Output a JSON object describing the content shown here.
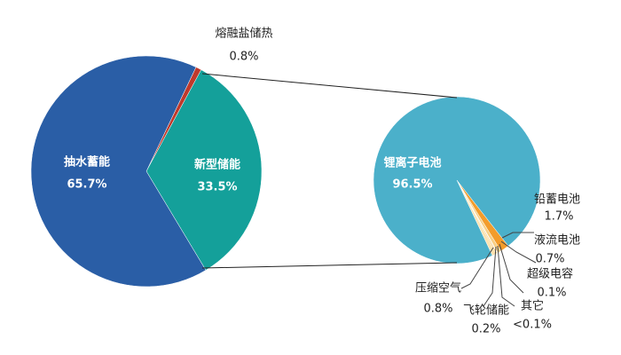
{
  "chart_data": [
    {
      "type": "pie",
      "categories": [
        "熔融盐储热",
        "新型储能",
        "抽水蓄能"
      ],
      "values": [
        0.8,
        33.5,
        65.7
      ],
      "value_labels": [
        "0.8%",
        "33.5%",
        "65.7%"
      ],
      "colors": [
        "#c0392b",
        "#14a09a",
        "#2a5ea6"
      ]
    },
    {
      "type": "pie",
      "categories": [
        "铅蓄电池",
        "液流电池",
        "超级电容",
        "其它",
        "飞轮储能",
        "压缩空气",
        "锂离子电池"
      ],
      "values": [
        1.7,
        0.7,
        0.1,
        0.05,
        0.2,
        0.8,
        96.5
      ],
      "value_labels": [
        "1.7%",
        "0.7%",
        "0.1%",
        "<0.1%",
        "0.2%",
        "0.8%",
        "96.5%"
      ],
      "colors": [
        "#f39c2b",
        "#f8cf85",
        "#eeeeee",
        "#dddddd",
        "#f5b041",
        "#fde3b0",
        "#4bb0ca"
      ]
    }
  ]
}
